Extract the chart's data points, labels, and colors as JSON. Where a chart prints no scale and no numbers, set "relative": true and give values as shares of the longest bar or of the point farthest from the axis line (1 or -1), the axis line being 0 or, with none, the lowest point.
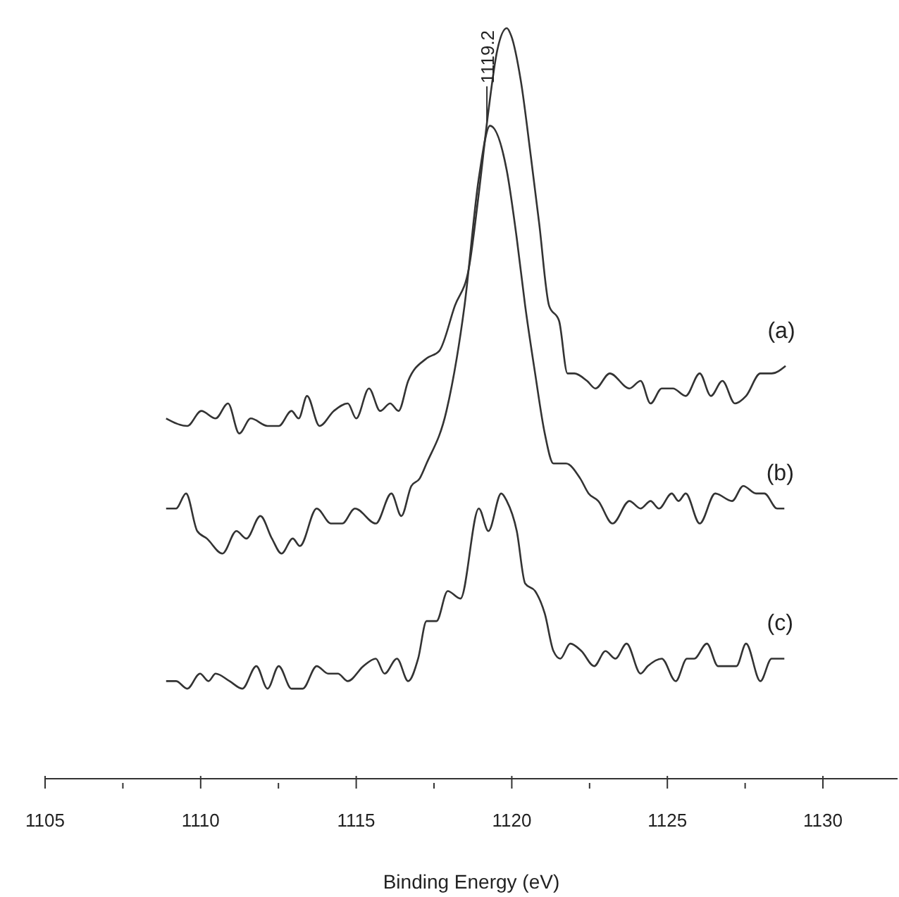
{
  "chart_data": {
    "type": "line",
    "relative": true,
    "xlabel": "Binding Energy (eV)",
    "xlim": [
      1105,
      1132.4
    ],
    "xticks": [
      1105,
      {
        "value": 1107.5,
        "label": null
      },
      1110,
      {
        "value": 1112.5,
        "label": null
      },
      1115,
      {
        "value": 1117.5,
        "label": null
      },
      1120,
      {
        "value": 1122.5,
        "label": null
      },
      1125,
      {
        "value": 1127.5,
        "label": null
      },
      1130
    ],
    "annotations": [
      {
        "text": "1119.2",
        "x": 1119.2,
        "y": 0.87
      }
    ],
    "series": [
      {
        "name": "(a)",
        "color": "#333333",
        "x": [
          1108.89,
          1109.57,
          1110.02,
          1110.48,
          1110.88,
          1111.24,
          1111.61,
          1112.15,
          1112.51,
          1112.92,
          1113.15,
          1113.42,
          1113.82,
          1114.28,
          1114.73,
          1115.0,
          1115.41,
          1115.77,
          1116.09,
          1116.36,
          1116.67,
          1117.26,
          1117.67,
          1118.17,
          1118.62,
          1118.94,
          1119.25,
          1119.53,
          1119.84,
          1119.98,
          1120.29,
          1120.61,
          1120.88,
          1121.2,
          1121.52,
          1121.79,
          1122.01,
          1122.42,
          1122.69,
          1123.15,
          1123.78,
          1124.14,
          1124.46,
          1124.82,
          1125.18,
          1125.59,
          1126.04,
          1126.4,
          1126.77,
          1127.17,
          1127.53,
          1127.99,
          1128.35,
          1128.8
        ],
        "values": [
          0.48,
          0.47,
          0.49,
          0.48,
          0.5,
          0.46,
          0.48,
          0.47,
          0.47,
          0.49,
          0.48,
          0.51,
          0.47,
          0.49,
          0.5,
          0.48,
          0.52,
          0.49,
          0.5,
          0.49,
          0.53,
          0.56,
          0.57,
          0.63,
          0.68,
          0.78,
          0.89,
          0.97,
          1.0,
          0.99,
          0.93,
          0.83,
          0.74,
          0.63,
          0.61,
          0.54,
          0.54,
          0.53,
          0.52,
          0.54,
          0.52,
          0.53,
          0.5,
          0.52,
          0.52,
          0.51,
          0.54,
          0.51,
          0.53,
          0.5,
          0.51,
          0.54,
          0.54,
          0.55
        ]
      },
      {
        "name": "(b)",
        "color": "#333333",
        "x": [
          1108.89,
          1109.21,
          1109.53,
          1109.89,
          1110.2,
          1110.7,
          1111.15,
          1111.47,
          1111.92,
          1112.29,
          1112.6,
          1112.96,
          1113.19,
          1113.73,
          1114.19,
          1114.55,
          1114.96,
          1115.63,
          1116.13,
          1116.45,
          1116.77,
          1117.04,
          1117.26,
          1117.9,
          1118.48,
          1118.94,
          1119.3,
          1119.84,
          1120.16,
          1120.43,
          1120.75,
          1121.06,
          1121.34,
          1121.74,
          1122.2,
          1122.47,
          1122.78,
          1123.24,
          1123.78,
          1124.14,
          1124.46,
          1124.73,
          1125.14,
          1125.36,
          1125.59,
          1126.04,
          1126.54,
          1127.08,
          1127.44,
          1127.85,
          1128.12,
          1128.53,
          1128.76
        ],
        "values": [
          0.36,
          0.36,
          0.38,
          0.33,
          0.32,
          0.3,
          0.33,
          0.32,
          0.35,
          0.32,
          0.3,
          0.32,
          0.31,
          0.36,
          0.34,
          0.34,
          0.36,
          0.34,
          0.38,
          0.35,
          0.39,
          0.4,
          0.42,
          0.49,
          0.63,
          0.8,
          0.87,
          0.81,
          0.72,
          0.63,
          0.54,
          0.46,
          0.42,
          0.42,
          0.4,
          0.38,
          0.37,
          0.34,
          0.37,
          0.36,
          0.37,
          0.36,
          0.38,
          0.37,
          0.38,
          0.34,
          0.38,
          0.37,
          0.39,
          0.38,
          0.38,
          0.36,
          0.36
        ]
      },
      {
        "name": "(c)",
        "color": "#333333",
        "x": [
          1108.89,
          1109.21,
          1109.57,
          1109.98,
          1110.25,
          1110.48,
          1110.93,
          1111.34,
          1111.79,
          1112.15,
          1112.51,
          1112.92,
          1113.28,
          1113.73,
          1114.1,
          1114.41,
          1114.73,
          1115.23,
          1115.63,
          1115.91,
          1116.31,
          1116.67,
          1116.99,
          1117.26,
          1117.58,
          1117.94,
          1118.35,
          1118.94,
          1119.25,
          1119.66,
          1119.84,
          1120.16,
          1120.43,
          1120.75,
          1121.06,
          1121.34,
          1121.56,
          1121.88,
          1122.24,
          1122.65,
          1123.01,
          1123.33,
          1123.69,
          1124.14,
          1124.37,
          1124.82,
          1125.27,
          1125.63,
          1125.86,
          1126.27,
          1126.63,
          1126.95,
          1127.22,
          1127.53,
          1127.99,
          1128.35,
          1128.76
        ],
        "values": [
          0.13,
          0.13,
          0.12,
          0.14,
          0.13,
          0.14,
          0.13,
          0.12,
          0.15,
          0.12,
          0.15,
          0.12,
          0.12,
          0.15,
          0.14,
          0.14,
          0.13,
          0.15,
          0.16,
          0.14,
          0.16,
          0.13,
          0.16,
          0.21,
          0.21,
          0.25,
          0.24,
          0.36,
          0.33,
          0.38,
          0.37,
          0.33,
          0.26,
          0.25,
          0.22,
          0.17,
          0.16,
          0.18,
          0.17,
          0.15,
          0.17,
          0.16,
          0.18,
          0.14,
          0.15,
          0.16,
          0.13,
          0.16,
          0.16,
          0.18,
          0.15,
          0.15,
          0.15,
          0.18,
          0.13,
          0.16,
          0.16
        ]
      }
    ]
  }
}
